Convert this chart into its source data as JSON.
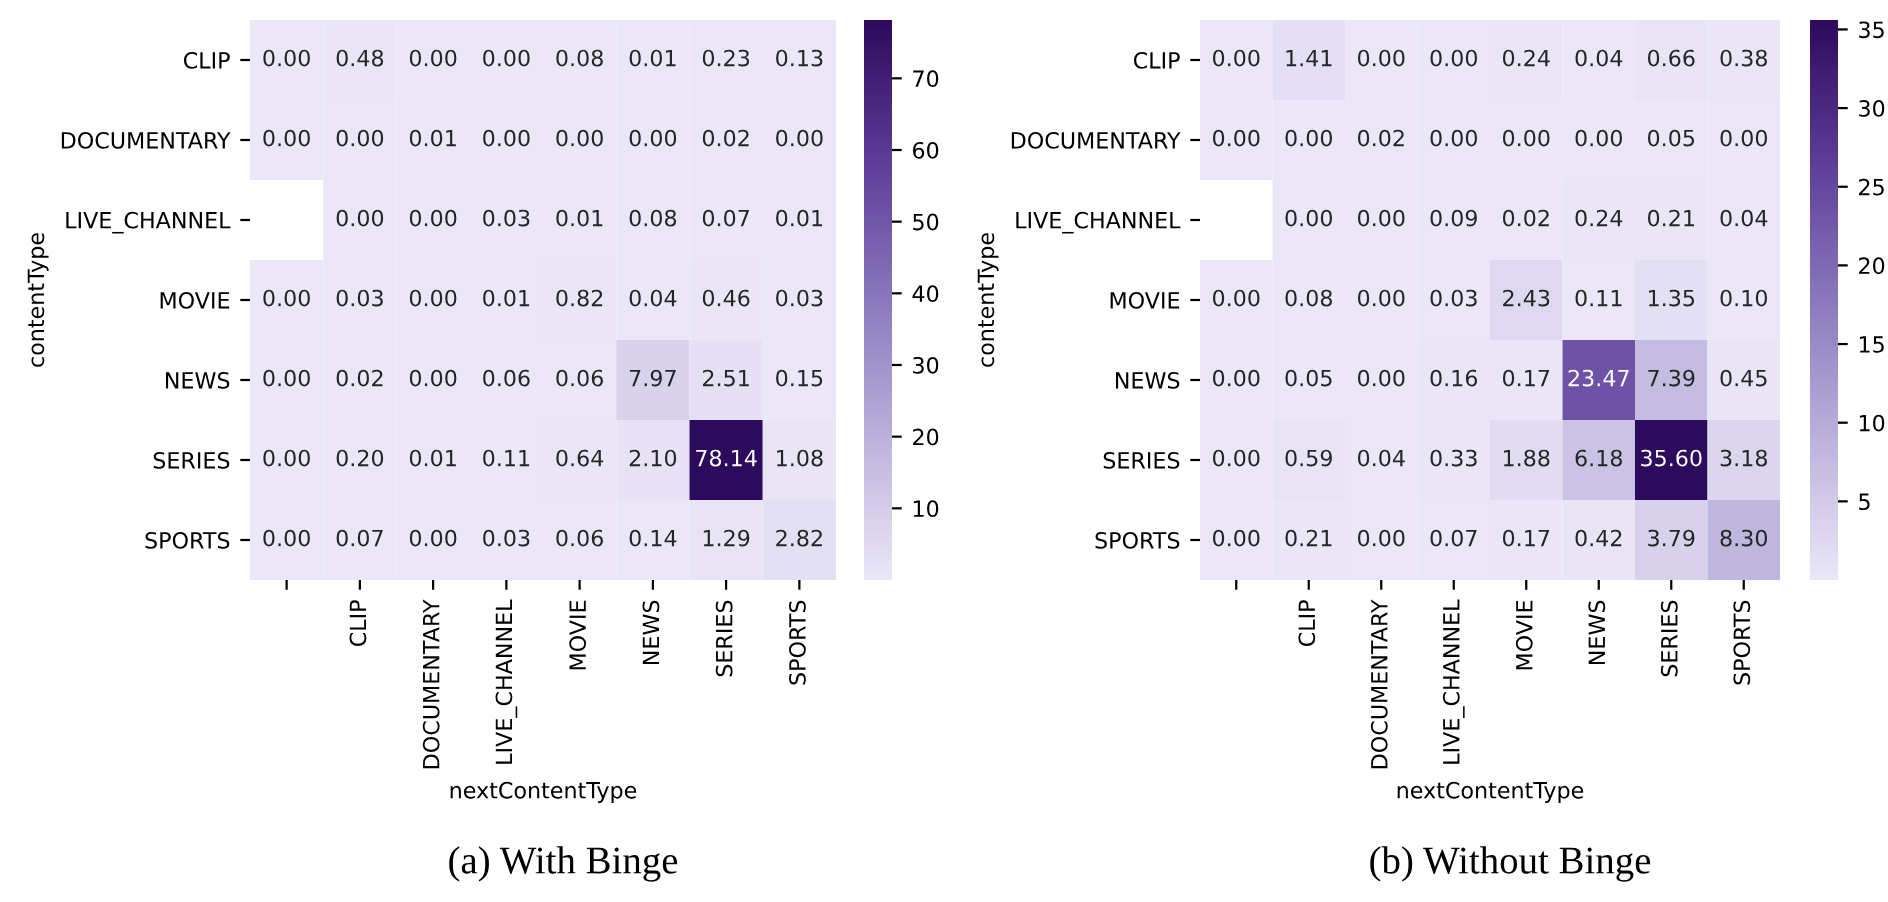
{
  "chart_data": [
    {
      "type": "heatmap",
      "xlabel": "nextContentType",
      "ylabel": "contentType",
      "annotations": [
        "(a) With Binge"
      ],
      "categories": [
        null,
        "CLIP",
        "DOCUMENTARY",
        "LIVE_CHANNEL",
        "MOVIE",
        "NEWS",
        "SERIES",
        "SPORTS"
      ],
      "y_categories": [
        "CLIP",
        "DOCUMENTARY",
        "LIVE_CHANNEL",
        "MOVIE",
        "NEWS",
        "SERIES",
        "SPORTS"
      ],
      "cells": [
        [
          0.0,
          0.48,
          0.0,
          0.0,
          0.08,
          0.01,
          0.23,
          0.13
        ],
        [
          0.0,
          0.0,
          0.01,
          0.0,
          0.0,
          0.0,
          0.02,
          0.0
        ],
        [
          null,
          0.0,
          0.0,
          0.03,
          0.01,
          0.08,
          0.07,
          0.01
        ],
        [
          0.0,
          0.03,
          0.0,
          0.01,
          0.82,
          0.04,
          0.46,
          0.03
        ],
        [
          0.0,
          0.02,
          0.0,
          0.06,
          0.06,
          7.97,
          2.51,
          0.15
        ],
        [
          0.0,
          0.2,
          0.01,
          0.11,
          0.64,
          2.1,
          78.14,
          1.08
        ],
        [
          0.0,
          0.07,
          0.0,
          0.03,
          0.06,
          0.14,
          1.29,
          2.82
        ]
      ],
      "cell_labels": [
        [
          "0.00",
          "0.48",
          "0.00",
          "0.00",
          "0.08",
          "0.01",
          "0.23",
          "0.13"
        ],
        [
          "0.00",
          "0.00",
          "0.01",
          "0.00",
          "0.00",
          "0.00",
          "0.02",
          "0.00"
        ],
        [
          null,
          "0.00",
          "0.00",
          "0.03",
          "0.01",
          "0.08",
          "0.07",
          "0.01"
        ],
        [
          "0.00",
          "0.03",
          "0.00",
          "0.01",
          "0.82",
          "0.04",
          "0.46",
          "0.03"
        ],
        [
          "0.00",
          "0.02",
          "0.00",
          "0.06",
          "0.06",
          "7.97",
          "2.51",
          "0.15"
        ],
        [
          "0.00",
          "0.20",
          "0.01",
          "0.11",
          "0.64",
          "2.10",
          "78.14",
          "1.08"
        ],
        [
          "0.00",
          "0.07",
          "0.00",
          "0.03",
          "0.06",
          "0.14",
          "1.29",
          "2.82"
        ]
      ],
      "clim": [
        0,
        78.14
      ],
      "cticks": [
        10,
        20,
        30,
        40,
        50,
        60,
        70
      ]
    },
    {
      "type": "heatmap",
      "xlabel": "nextContentType",
      "ylabel": "contentType",
      "annotations": [
        "(b) Without Binge"
      ],
      "categories": [
        null,
        "CLIP",
        "DOCUMENTARY",
        "LIVE_CHANNEL",
        "MOVIE",
        "NEWS",
        "SERIES",
        "SPORTS"
      ],
      "y_categories": [
        "CLIP",
        "DOCUMENTARY",
        "LIVE_CHANNEL",
        "MOVIE",
        "NEWS",
        "SERIES",
        "SPORTS"
      ],
      "cells": [
        [
          0.0,
          1.41,
          0.0,
          0.0,
          0.24,
          0.04,
          0.66,
          0.38
        ],
        [
          0.0,
          0.0,
          0.02,
          0.0,
          0.0,
          0.0,
          0.05,
          0.0
        ],
        [
          null,
          0.0,
          0.0,
          0.09,
          0.02,
          0.24,
          0.21,
          0.04
        ],
        [
          0.0,
          0.08,
          0.0,
          0.03,
          2.43,
          0.11,
          1.35,
          0.1
        ],
        [
          0.0,
          0.05,
          0.0,
          0.16,
          0.17,
          23.47,
          7.39,
          0.45
        ],
        [
          0.0,
          0.59,
          0.04,
          0.33,
          1.88,
          6.18,
          35.6,
          3.18
        ],
        [
          0.0,
          0.21,
          0.0,
          0.07,
          0.17,
          0.42,
          3.79,
          8.3
        ]
      ],
      "cell_labels": [
        [
          "0.00",
          "1.41",
          "0.00",
          "0.00",
          "0.24",
          "0.04",
          "0.66",
          "0.38"
        ],
        [
          "0.00",
          "0.00",
          "0.02",
          "0.00",
          "0.00",
          "0.00",
          "0.05",
          "0.00"
        ],
        [
          null,
          "0.00",
          "0.00",
          "0.09",
          "0.02",
          "0.24",
          "0.21",
          "0.04"
        ],
        [
          "0.00",
          "0.08",
          "0.00",
          "0.03",
          "2.43",
          "0.11",
          "1.35",
          "0.10"
        ],
        [
          "0.00",
          "0.05",
          "0.00",
          "0.16",
          "0.17",
          "23.47",
          "7.39",
          "0.45"
        ],
        [
          "0.00",
          "0.59",
          "0.04",
          "0.33",
          "1.88",
          "6.18",
          "35.60",
          "3.18"
        ],
        [
          "0.00",
          "0.21",
          "0.00",
          "0.07",
          "0.17",
          "0.42",
          "3.79",
          "8.30"
        ]
      ],
      "clim": [
        0,
        35.6
      ],
      "cticks": [
        5,
        10,
        15,
        20,
        25,
        30,
        35
      ]
    }
  ]
}
